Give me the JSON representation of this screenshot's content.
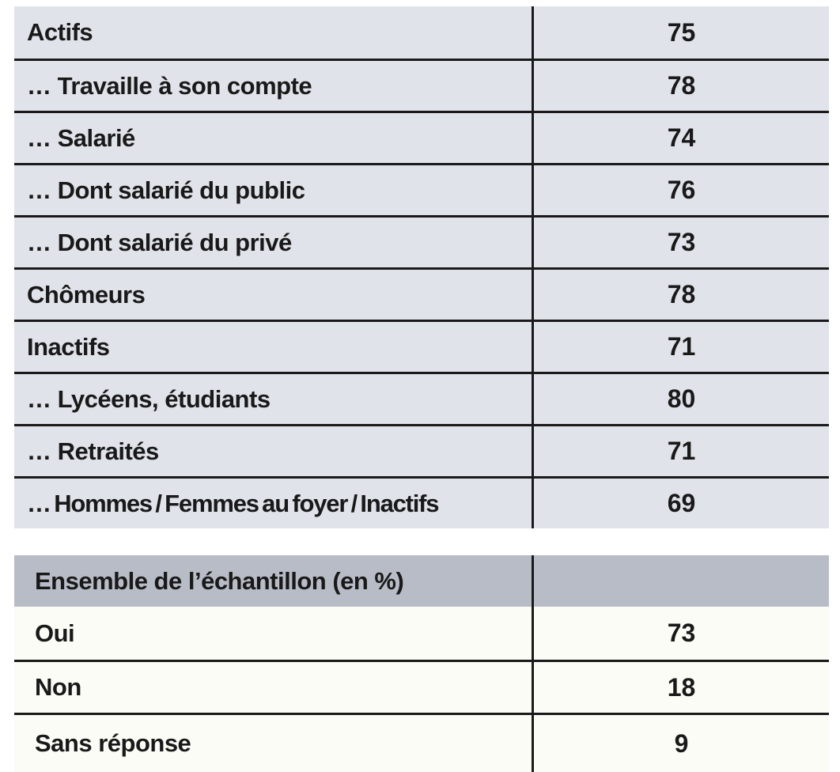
{
  "colors": {
    "top_table_bg": "#e1e3eb",
    "header_bg": "#b8bcc7",
    "data_row_bg": "#fcfcf7",
    "grid_line": "#1a1a1a",
    "text": "#191919",
    "page_bg": "#ffffff"
  },
  "top_table": {
    "rows": [
      {
        "label": "Actifs",
        "value": "75"
      },
      {
        "label": "… Travaille à son compte",
        "value": "78"
      },
      {
        "label": "… Salarié",
        "value": "74"
      },
      {
        "label": "… Dont salarié du public",
        "value": "76"
      },
      {
        "label": "… Dont salarié du privé",
        "value": "73"
      },
      {
        "label": "Chômeurs",
        "value": "78"
      },
      {
        "label": "Inactifs",
        "value": "71"
      },
      {
        "label": "… Lycéens, étudiants",
        "value": "80"
      },
      {
        "label": "… Retraités",
        "value": "71"
      },
      {
        "label": "… Hommes / Femmes au foyer / Inactifs",
        "value": "69"
      }
    ]
  },
  "bottom_table": {
    "header": "Ensemble de l’échantillon (en %)",
    "rows": [
      {
        "label": "Oui",
        "value": "73"
      },
      {
        "label": "Non",
        "value": "18"
      },
      {
        "label": "Sans réponse",
        "value": "9"
      }
    ]
  },
  "chart_data": {
    "type": "table",
    "sections": [
      {
        "title": "",
        "categories": [
          "Actifs",
          "… Travaille à son compte",
          "… Salarié",
          "… Dont salarié du public",
          "… Dont salarié du privé",
          "Chômeurs",
          "Inactifs",
          "… Lycéens, étudiants",
          "… Retraités",
          "… Hommes / Femmes au foyer / Inactifs"
        ],
        "values": [
          75,
          78,
          74,
          76,
          73,
          78,
          71,
          80,
          71,
          69
        ]
      },
      {
        "title": "Ensemble de l’échantillon (en %)",
        "categories": [
          "Oui",
          "Non",
          "Sans réponse"
        ],
        "values": [
          73,
          18,
          9
        ]
      }
    ]
  }
}
